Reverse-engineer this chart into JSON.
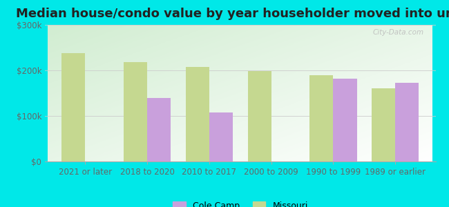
{
  "title": "Median house/condo value by year householder moved into unit",
  "categories": [
    "2021 or later",
    "2018 to 2020",
    "2010 to 2017",
    "2000 to 2009",
    "1990 to 1999",
    "1989 or earlier"
  ],
  "cole_camp": [
    null,
    140000,
    108000,
    null,
    182000,
    172000
  ],
  "missouri": [
    238000,
    218000,
    207000,
    199000,
    190000,
    160000
  ],
  "cole_camp_color": "#c9a0dc",
  "missouri_color": "#c5d890",
  "background_outer": "#00e8e8",
  "ylim": [
    0,
    300000
  ],
  "yticks": [
    0,
    100000,
    200000,
    300000
  ],
  "ytick_labels": [
    "$0",
    "$100k",
    "$200k",
    "$300k"
  ],
  "bar_width": 0.38,
  "legend_labels": [
    "Cole Camp",
    "Missouri"
  ],
  "watermark": "City-Data.com",
  "title_fontsize": 13,
  "tick_fontsize": 8.5,
  "grid_color": "#cccccc",
  "tick_color": "#666666"
}
